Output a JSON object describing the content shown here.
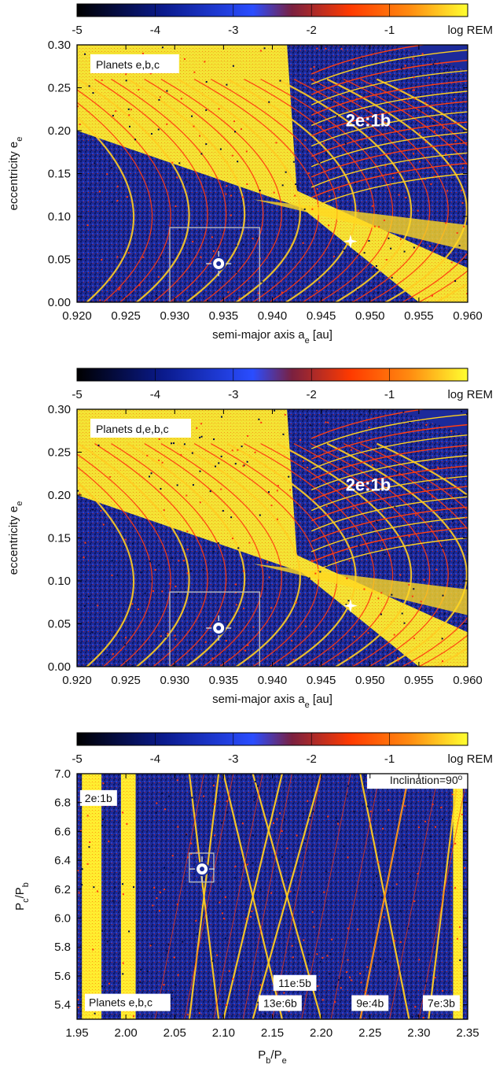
{
  "colorbar": {
    "ticks": [
      "-5",
      "-4",
      "-3",
      "-2",
      "-1"
    ],
    "label": "log REM",
    "colors": [
      "#000000",
      "#0a1a8c",
      "#1a3cff",
      "#ff2a00",
      "#ffff33"
    ]
  },
  "chart_data": [
    {
      "type": "heatmap",
      "title": "",
      "inset_label": "Planets e,b,c",
      "resonance_label": "2e:1b",
      "xlabel": "semi-major axis a",
      "xlabel_sub": "e",
      "xlabel_unit": " [au]",
      "ylabel": "eccentricity e",
      "ylabel_sub": "e",
      "xlim": [
        0.92,
        0.96
      ],
      "ylim": [
        0.0,
        0.3
      ],
      "xticks": [
        "0.920",
        "0.925",
        "0.930",
        "0.935",
        "0.940",
        "0.945",
        "0.950",
        "0.955",
        "0.960"
      ],
      "yticks": [
        "0.00",
        "0.05",
        "0.10",
        "0.15",
        "0.20",
        "0.25",
        "0.30"
      ],
      "nominal_marker": {
        "x": 0.9345,
        "y": 0.045
      },
      "star_marker": {
        "x": 0.948,
        "y": 0.071
      },
      "zoom_box": {
        "x0": 0.9295,
        "x1": 0.9387,
        "y0": 0.0,
        "y1": 0.087
      }
    },
    {
      "type": "heatmap",
      "title": "",
      "inset_label": "Planets d,e,b,c",
      "resonance_label": "2e:1b",
      "xlabel": "semi-major axis a",
      "xlabel_sub": "e",
      "xlabel_unit": " [au]",
      "ylabel": "eccentricity e",
      "ylabel_sub": "e",
      "xlim": [
        0.92,
        0.96
      ],
      "ylim": [
        0.0,
        0.3
      ],
      "xticks": [
        "0.920",
        "0.925",
        "0.930",
        "0.935",
        "0.940",
        "0.945",
        "0.950",
        "0.955",
        "0.960"
      ],
      "yticks": [
        "0.00",
        "0.05",
        "0.10",
        "0.15",
        "0.20",
        "0.25",
        "0.30"
      ],
      "nominal_marker": {
        "x": 0.9345,
        "y": 0.045
      },
      "star_marker": {
        "x": 0.948,
        "y": 0.071
      },
      "zoom_box": {
        "x0": 0.9295,
        "x1": 0.9387,
        "y0": 0.0,
        "y1": 0.087
      }
    },
    {
      "type": "heatmap",
      "title": "",
      "inset_label": "Planets e,b,c",
      "inclination_label": "Inclination=90",
      "inclination_sup": "o",
      "resonance_labels": [
        "2e:1b",
        "13e:6b",
        "11e:5b",
        "9e:4b",
        "7e:3b"
      ],
      "xlabel": "P",
      "xlabel_sub": "b",
      "xlabel_mid": "/P",
      "xlabel_sub2": "e",
      "ylabel": "P",
      "ylabel_sub": "c",
      "ylabel_mid": "/P",
      "ylabel_sub2": "b",
      "xlim": [
        1.95,
        2.35
      ],
      "ylim": [
        5.3,
        7.0
      ],
      "xticks": [
        "1.95",
        "2.00",
        "2.05",
        "2.10",
        "2.15",
        "2.20",
        "2.25",
        "2.30",
        "2.35"
      ],
      "yticks": [
        "5.4",
        "5.6",
        "5.8",
        "6.0",
        "6.2",
        "6.4",
        "6.6",
        "6.8",
        "7.0"
      ],
      "nominal_marker": {
        "x": 2.078,
        "y": 6.34
      },
      "zoom_box": {
        "x0": 2.065,
        "x1": 2.09,
        "y0": 6.25,
        "y1": 6.45
      }
    }
  ]
}
